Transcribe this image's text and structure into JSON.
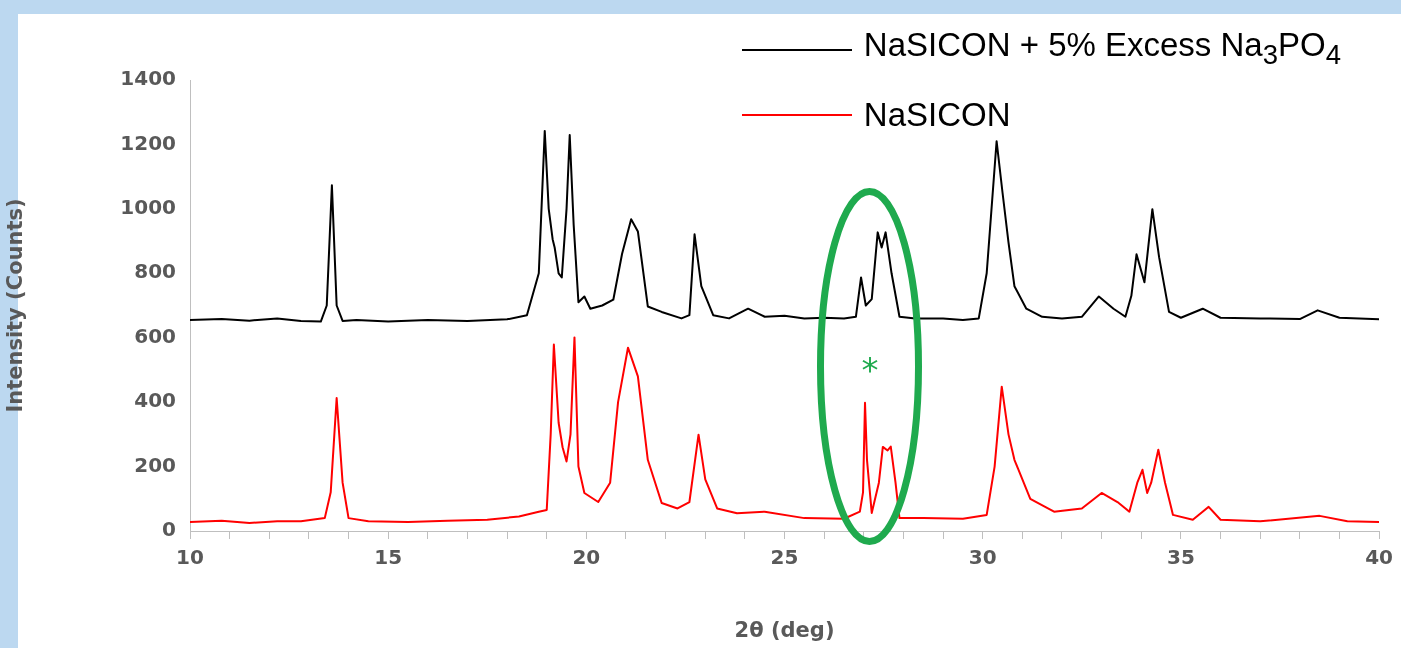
{
  "chart_data": {
    "type": "line",
    "xlabel": "2θ (deg)",
    "ylabel": "Intensity (Counts)",
    "xlim": [
      10,
      40
    ],
    "xticks": [
      10,
      {
        "value": 11,
        "label": null
      },
      {
        "value": 12,
        "label": null
      },
      {
        "value": 13,
        "label": null
      },
      {
        "value": 14,
        "label": null
      },
      15,
      {
        "value": 16,
        "label": null
      },
      {
        "value": 17,
        "label": null
      },
      {
        "value": 18,
        "label": null
      },
      {
        "value": 19,
        "label": null
      },
      20,
      {
        "value": 21,
        "label": null
      },
      {
        "value": 22,
        "label": null
      },
      {
        "value": 23,
        "label": null
      },
      {
        "value": 24,
        "label": null
      },
      25,
      {
        "value": 26,
        "label": null
      },
      {
        "value": 27,
        "label": null
      },
      {
        "value": 28,
        "label": null
      },
      {
        "value": 29,
        "label": null
      },
      30,
      {
        "value": 31,
        "label": null
      },
      {
        "value": 32,
        "label": null
      },
      {
        "value": 33,
        "label": null
      },
      {
        "value": 34,
        "label": null
      },
      35,
      {
        "value": 36,
        "label": null
      },
      {
        "value": 37,
        "label": null
      },
      {
        "value": 38,
        "label": null
      },
      {
        "value": 39,
        "label": null
      },
      40
    ],
    "ylim": [
      0,
      1400
    ],
    "yticks": [
      0,
      200,
      400,
      600,
      800,
      1000,
      1200,
      1400
    ],
    "legend": "top right",
    "marker": "none",
    "line_style": "solid",
    "annotations": [
      "*"
    ],
    "series": [
      {
        "name": "NaSICON + 5% Excess Na$_{3}$PO$_{4}$",
        "color": "#000000",
        "x": [
          10,
          10.8,
          11.5,
          12.2,
          12.8,
          13.3,
          13.45,
          13.58,
          13.7,
          13.85,
          14.2,
          15,
          16,
          17,
          18,
          18.5,
          18.8,
          18.95,
          19.05,
          19.15,
          19.2,
          19.3,
          19.38,
          19.5,
          19.58,
          19.68,
          19.8,
          19.95,
          20.1,
          20.4,
          20.68,
          20.9,
          21.13,
          21.3,
          21.55,
          21.9,
          22.4,
          22.6,
          22.73,
          22.9,
          23.2,
          23.6,
          24.08,
          24.5,
          25,
          25.5,
          26,
          26.5,
          26.8,
          26.93,
          27.05,
          27.2,
          27.35,
          27.45,
          27.55,
          27.7,
          27.9,
          28.3,
          29,
          29.5,
          29.9,
          30.1,
          30.35,
          30.5,
          30.65,
          30.8,
          31.1,
          31.5,
          32,
          32.5,
          32.93,
          33.3,
          33.6,
          33.75,
          33.88,
          34.08,
          34.28,
          34.45,
          34.7,
          35,
          35.55,
          36,
          37,
          38,
          38.45,
          39,
          40
        ],
        "values": [
          655,
          658,
          653,
          660,
          652,
          650,
          700,
          1073,
          700,
          652,
          655,
          650,
          655,
          652,
          657,
          670,
          800,
          1242,
          1000,
          905,
          880,
          800,
          787,
          1000,
          1229,
          950,
          710,
          728,
          690,
          700,
          718,
          860,
          968,
          930,
          697,
          680,
          660,
          670,
          921,
          760,
          670,
          660,
          690,
          665,
          668,
          660,
          662,
          660,
          665,
          787,
          700,
          720,
          927,
          880,
          927,
          800,
          665,
          660,
          660,
          655,
          660,
          800,
          1210,
          1050,
          896,
          760,
          690,
          665,
          660,
          665,
          728,
          690,
          665,
          730,
          859,
          772,
          999,
          850,
          680,
          662,
          690,
          662,
          660,
          658,
          685,
          662,
          657
        ]
      },
      {
        "name": "NaSICON",
        "color": "#ff0000",
        "x": [
          10,
          10.8,
          11.5,
          12.2,
          12.8,
          13.4,
          13.55,
          13.7,
          13.85,
          14.0,
          14.5,
          15.5,
          16.5,
          17.5,
          18.3,
          18.8,
          19.0,
          19.1,
          19.18,
          19.3,
          19.4,
          19.5,
          19.6,
          19.7,
          19.8,
          19.95,
          20.3,
          20.6,
          20.8,
          21.05,
          21.3,
          21.55,
          21.9,
          22.3,
          22.6,
          22.83,
          23.0,
          23.3,
          23.8,
          24.5,
          25.5,
          26.5,
          26.9,
          26.98,
          27.03,
          27.08,
          27.2,
          27.38,
          27.48,
          27.6,
          27.68,
          27.8,
          27.9,
          28.5,
          29.5,
          30.1,
          30.3,
          30.48,
          30.65,
          30.8,
          31.2,
          31.8,
          32.5,
          33.0,
          33.4,
          33.7,
          33.9,
          34.03,
          34.15,
          34.25,
          34.43,
          34.6,
          34.8,
          35.3,
          35.7,
          36,
          37,
          38.5,
          39.2,
          40
        ],
        "values": [
          28,
          32,
          25,
          30,
          30,
          40,
          120,
          413,
          150,
          40,
          30,
          28,
          32,
          35,
          45,
          60,
          65,
          300,
          579,
          336,
          260,
          216,
          300,
          601,
          200,
          118,
          90,
          150,
          400,
          569,
          480,
          221,
          87,
          70,
          90,
          299,
          160,
          70,
          55,
          60,
          40,
          38,
          60,
          120,
          398,
          221,
          56,
          150,
          261,
          250,
          262,
          150,
          40,
          40,
          38,
          50,
          200,
          448,
          300,
          221,
          100,
          60,
          70,
          118,
          90,
          60,
          150,
          190,
          118,
          150,
          252,
          150,
          50,
          35,
          75,
          35,
          30,
          47,
          30,
          28
        ]
      }
    ]
  }
}
